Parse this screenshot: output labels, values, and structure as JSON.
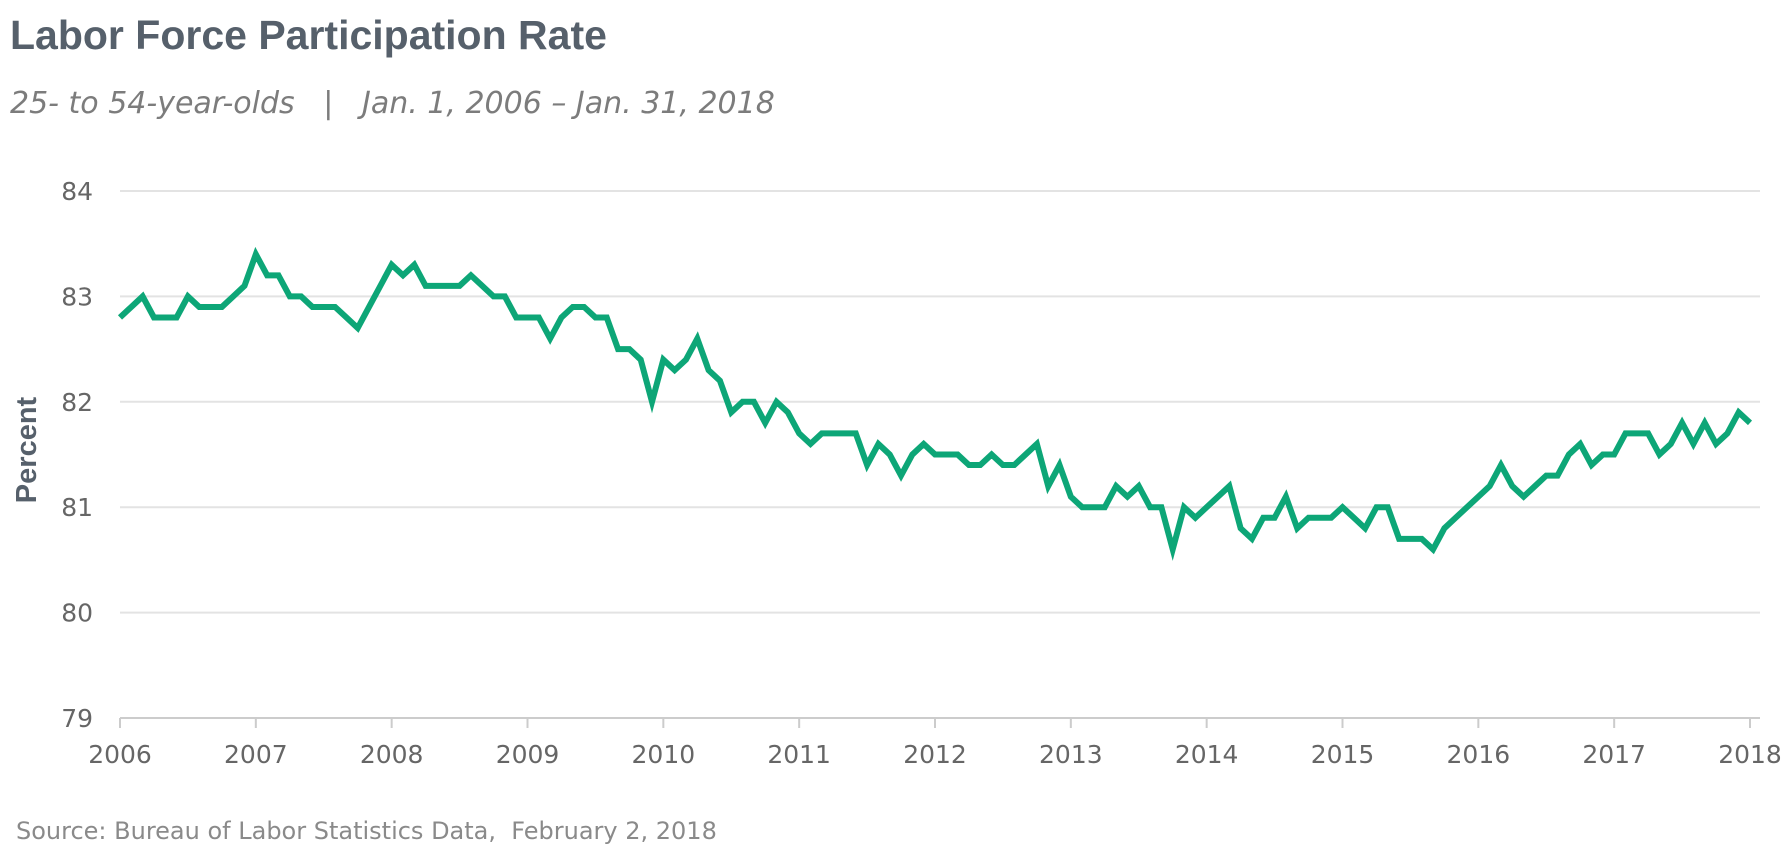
{
  "header": {
    "title": "Labor Force Participation Rate",
    "subtitle": "25- to 54-year-olds   |   Jan. 1, 2006 – Jan. 31, 2018"
  },
  "footer": {
    "source": "Source: Bureau of Labor Statistics Data,  February 2, 2018"
  },
  "colors": {
    "line": "#0da677",
    "grid": "#e3e3e3",
    "axis": "#cccccc"
  },
  "chart_data": {
    "type": "line",
    "title": "Labor Force Participation Rate",
    "subtitle": "25- to 54-year-olds   |   Jan. 1, 2006 – Jan. 31, 2018",
    "xlabel": "",
    "ylabel": "Percent",
    "ylim": [
      79,
      84
    ],
    "yticks": [
      79,
      80,
      81,
      82,
      83,
      84
    ],
    "xlim": [
      "2006-01",
      "2018-01"
    ],
    "xticks": [
      "2006",
      "2007",
      "2008",
      "2009",
      "2010",
      "2011",
      "2012",
      "2013",
      "2014",
      "2015",
      "2016",
      "2017",
      "2018"
    ],
    "grid": true,
    "series": [
      {
        "start": "2006-01",
        "frequency": "monthly",
        "values": [
          82.8,
          82.9,
          83.0,
          82.8,
          82.8,
          82.8,
          83.0,
          82.9,
          82.9,
          82.9,
          83.0,
          83.1,
          83.4,
          83.2,
          83.2,
          83.0,
          83.0,
          82.9,
          82.9,
          82.9,
          82.8,
          82.7,
          82.9,
          83.1,
          83.3,
          83.2,
          83.3,
          83.1,
          83.1,
          83.1,
          83.1,
          83.2,
          83.1,
          83.0,
          83.0,
          82.8,
          82.8,
          82.8,
          82.6,
          82.8,
          82.9,
          82.9,
          82.8,
          82.8,
          82.5,
          82.5,
          82.4,
          82.0,
          82.4,
          82.3,
          82.4,
          82.6,
          82.3,
          82.2,
          81.9,
          82.0,
          82.0,
          81.8,
          82.0,
          81.9,
          81.7,
          81.6,
          81.7,
          81.7,
          81.7,
          81.7,
          81.4,
          81.6,
          81.5,
          81.3,
          81.5,
          81.6,
          81.5,
          81.5,
          81.5,
          81.4,
          81.4,
          81.5,
          81.4,
          81.4,
          81.5,
          81.6,
          81.2,
          81.4,
          81.1,
          81.0,
          81.0,
          81.0,
          81.2,
          81.1,
          81.2,
          81.0,
          81.0,
          80.6,
          81.0,
          80.9,
          81.0,
          81.1,
          81.2,
          80.8,
          80.7,
          80.9,
          80.9,
          81.1,
          80.8,
          80.9,
          80.9,
          80.9,
          81.0,
          80.9,
          80.8,
          81.0,
          81.0,
          80.7,
          80.7,
          80.7,
          80.6,
          80.8,
          80.9,
          81.0,
          81.1,
          81.2,
          81.4,
          81.2,
          81.1,
          81.2,
          81.3,
          81.3,
          81.5,
          81.6,
          81.4,
          81.5,
          81.5,
          81.7,
          81.7,
          81.7,
          81.5,
          81.6,
          81.8,
          81.6,
          81.8,
          81.6,
          81.7,
          81.9,
          81.8
        ]
      }
    ]
  }
}
